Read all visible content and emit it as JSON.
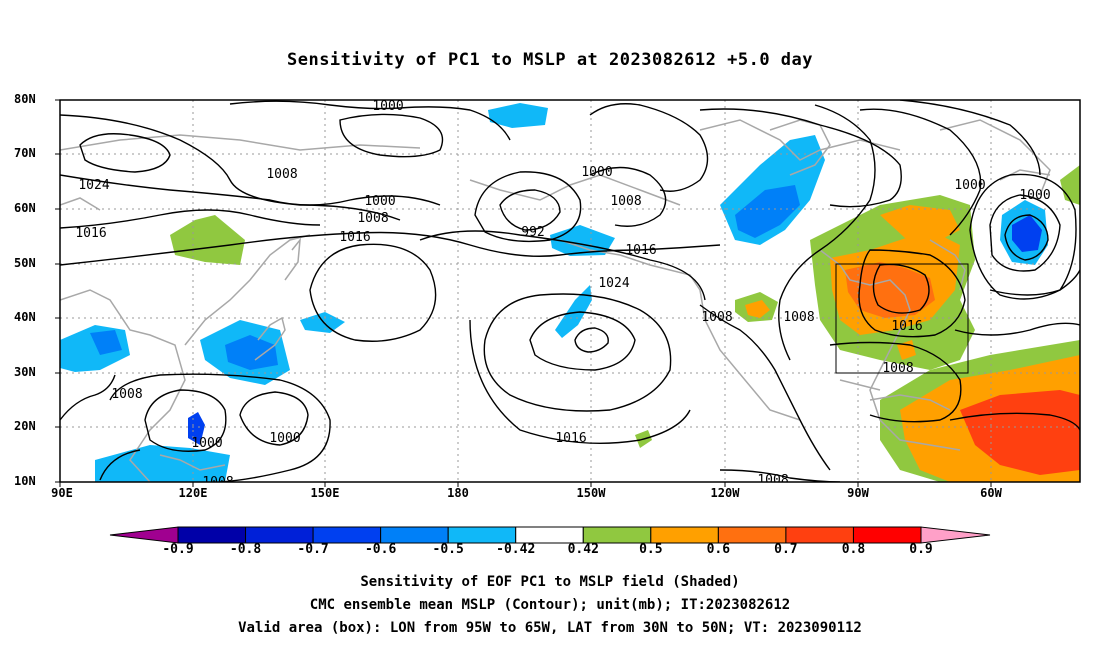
{
  "title": "Sensitivity of PC1 to MSLP at 2023082612 +5.0 day",
  "lat_labels": [
    "80N",
    "70N",
    "60N",
    "50N",
    "40N",
    "30N",
    "20N",
    "10N"
  ],
  "lon_labels": [
    "90E",
    "120E",
    "150E",
    "180",
    "150W",
    "120W",
    "90W",
    "60W"
  ],
  "contour_labels": [
    "1000",
    "1000",
    "1000",
    "1000",
    "1000",
    "1000",
    "1000",
    "1008",
    "1008",
    "1008",
    "1008",
    "1008",
    "1008",
    "1008",
    "1008",
    "1008",
    "1016",
    "1016",
    "1016",
    "1016",
    "1016",
    "1024",
    "1024",
    "992"
  ],
  "colorbar": {
    "levels": [
      "-0.9",
      "-0.8",
      "-0.7",
      "-0.6",
      "-0.5",
      "-0.42",
      "0.42",
      "0.5",
      "0.6",
      "0.7",
      "0.8",
      "0.9"
    ],
    "colors": [
      "#a00090",
      "#0000a8",
      "#0020d8",
      "#0040f0",
      "#0080f8",
      "#10b8f8",
      "#ffffff",
      "#90c840",
      "#ffa000",
      "#ff7010",
      "#ff4010",
      "#ff0000",
      "#ffa0c8"
    ]
  },
  "caption": {
    "line1": "Sensitivity of EOF PC1 to MSLP field (Shaded)",
    "line2": "CMC ensemble mean MSLP (Contour); unit(mb); IT:2023082612",
    "line3": "Valid area (box): LON from 95W to 65W, LAT from 30N to 50N; VT: 2023090112"
  }
}
